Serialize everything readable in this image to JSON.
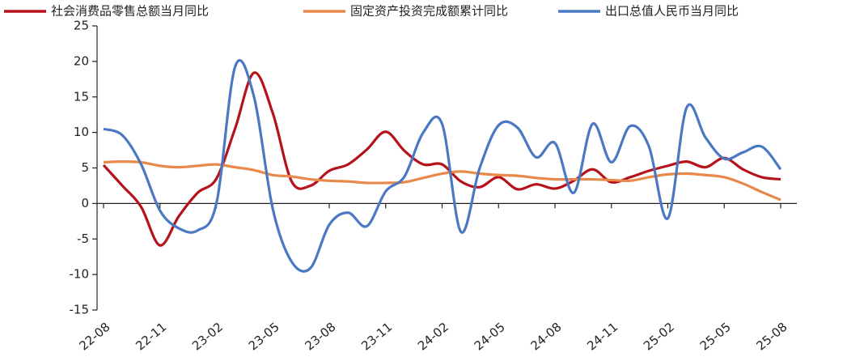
{
  "chart_data": {
    "type": "line",
    "categories": [
      "22-08",
      null,
      null,
      "22-11",
      null,
      null,
      "23-02",
      null,
      null,
      "23-05",
      null,
      null,
      "23-08",
      null,
      null,
      "23-11",
      null,
      null,
      "24-02",
      null,
      null,
      "24-05",
      null,
      null,
      "24-08",
      null,
      null,
      "24-11",
      null,
      null,
      "25-02",
      null,
      null,
      "25-05",
      null,
      null,
      "25-08"
    ],
    "series": [
      {
        "name": "社会消费品零售总额当月同比",
        "color": "#b5121b",
        "values": [
          5.4,
          2.5,
          -0.5,
          -5.9,
          -1.8,
          1.5,
          3.5,
          10.6,
          18.4,
          12.7,
          3.1,
          2.5,
          4.6,
          5.5,
          7.6,
          10.1,
          7.4,
          5.5,
          5.5,
          3.1,
          2.3,
          3.7,
          2.0,
          2.7,
          2.1,
          3.2,
          4.8,
          3.0,
          3.7,
          4.6,
          5.3,
          5.9,
          5.1,
          6.4,
          4.8,
          3.7,
          3.4
        ]
      },
      {
        "name": "固定资产投资完成额累计同比",
        "color": "#e8884a",
        "values": [
          5.8,
          5.9,
          5.8,
          5.3,
          5.1,
          5.3,
          5.5,
          5.1,
          4.7,
          4.0,
          3.8,
          3.4,
          3.2,
          3.1,
          2.9,
          2.9,
          3.0,
          3.6,
          4.2,
          4.5,
          4.2,
          4.0,
          3.9,
          3.6,
          3.4,
          3.4,
          3.4,
          3.3,
          3.2,
          3.7,
          4.1,
          4.2,
          4.0,
          3.7,
          2.8,
          1.6,
          0.5
        ]
      },
      {
        "name": "出口总值人民币当月同比",
        "color": "#4a78c2",
        "values": [
          10.5,
          9.6,
          5.5,
          -1.0,
          -3.5,
          -3.8,
          0.0,
          19.3,
          15.0,
          -0.8,
          -8.2,
          -9.1,
          -3.0,
          -1.3,
          -3.2,
          1.7,
          3.8,
          10.0,
          11.2,
          -4.0,
          5.0,
          11.0,
          10.7,
          6.5,
          8.5,
          1.5,
          11.2,
          5.8,
          10.9,
          8.0,
          -2.1,
          13.5,
          9.3,
          6.3,
          7.2,
          8.0,
          4.8
        ]
      }
    ],
    "ylim": [
      -15,
      25
    ],
    "yticks": [
      -15,
      -10,
      -5,
      0,
      5,
      10,
      15,
      20,
      25
    ]
  }
}
